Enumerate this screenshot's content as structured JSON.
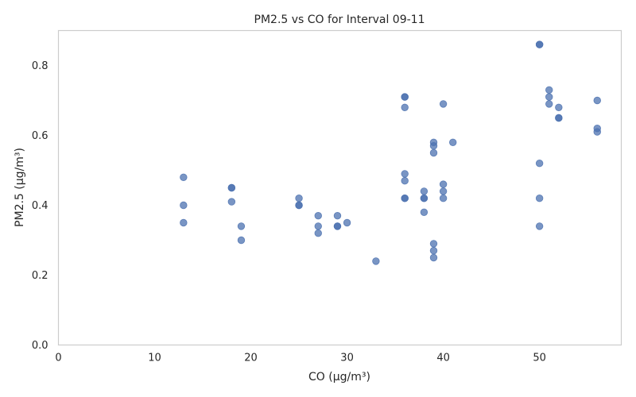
{
  "chart_data": {
    "type": "scatter",
    "title": "PM2.5 vs CO for Interval 09-11",
    "xlabel": "CO (µg/m³)",
    "ylabel": "PM2.5 (µg/m³)",
    "xlim": [
      0,
      58.5
    ],
    "ylim": [
      0,
      0.9
    ],
    "xticks": [
      0,
      10,
      20,
      30,
      40,
      50
    ],
    "yticks": [
      0.0,
      0.2,
      0.4,
      0.6,
      0.8
    ],
    "grid": false,
    "color": "#4c72b0",
    "points": [
      {
        "x": 13,
        "y": 0.48
      },
      {
        "x": 13,
        "y": 0.4
      },
      {
        "x": 13,
        "y": 0.35
      },
      {
        "x": 18,
        "y": 0.45
      },
      {
        "x": 18,
        "y": 0.45
      },
      {
        "x": 18,
        "y": 0.41
      },
      {
        "x": 19,
        "y": 0.34
      },
      {
        "x": 19,
        "y": 0.3
      },
      {
        "x": 25,
        "y": 0.42
      },
      {
        "x": 25,
        "y": 0.4
      },
      {
        "x": 25,
        "y": 0.4
      },
      {
        "x": 27,
        "y": 0.37
      },
      {
        "x": 27,
        "y": 0.34
      },
      {
        "x": 27,
        "y": 0.32
      },
      {
        "x": 29,
        "y": 0.37
      },
      {
        "x": 29,
        "y": 0.34
      },
      {
        "x": 29,
        "y": 0.34
      },
      {
        "x": 30,
        "y": 0.35
      },
      {
        "x": 33,
        "y": 0.24
      },
      {
        "x": 36,
        "y": 0.71
      },
      {
        "x": 36,
        "y": 0.71
      },
      {
        "x": 36,
        "y": 0.68
      },
      {
        "x": 36,
        "y": 0.49
      },
      {
        "x": 36,
        "y": 0.47
      },
      {
        "x": 36,
        "y": 0.42
      },
      {
        "x": 36,
        "y": 0.42
      },
      {
        "x": 38,
        "y": 0.44
      },
      {
        "x": 38,
        "y": 0.42
      },
      {
        "x": 38,
        "y": 0.42
      },
      {
        "x": 38,
        "y": 0.38
      },
      {
        "x": 39,
        "y": 0.58
      },
      {
        "x": 39,
        "y": 0.57
      },
      {
        "x": 39,
        "y": 0.55
      },
      {
        "x": 39,
        "y": 0.29
      },
      {
        "x": 39,
        "y": 0.27
      },
      {
        "x": 39,
        "y": 0.25
      },
      {
        "x": 40,
        "y": 0.69
      },
      {
        "x": 40,
        "y": 0.46
      },
      {
        "x": 40,
        "y": 0.44
      },
      {
        "x": 40,
        "y": 0.42
      },
      {
        "x": 41,
        "y": 0.58
      },
      {
        "x": 50,
        "y": 0.86
      },
      {
        "x": 50,
        "y": 0.86
      },
      {
        "x": 50,
        "y": 0.52
      },
      {
        "x": 50,
        "y": 0.42
      },
      {
        "x": 50,
        "y": 0.34
      },
      {
        "x": 51,
        "y": 0.73
      },
      {
        "x": 51,
        "y": 0.71
      },
      {
        "x": 51,
        "y": 0.69
      },
      {
        "x": 52,
        "y": 0.68
      },
      {
        "x": 52,
        "y": 0.65
      },
      {
        "x": 52,
        "y": 0.65
      },
      {
        "x": 56,
        "y": 0.7
      },
      {
        "x": 56,
        "y": 0.62
      },
      {
        "x": 56,
        "y": 0.61
      }
    ]
  }
}
